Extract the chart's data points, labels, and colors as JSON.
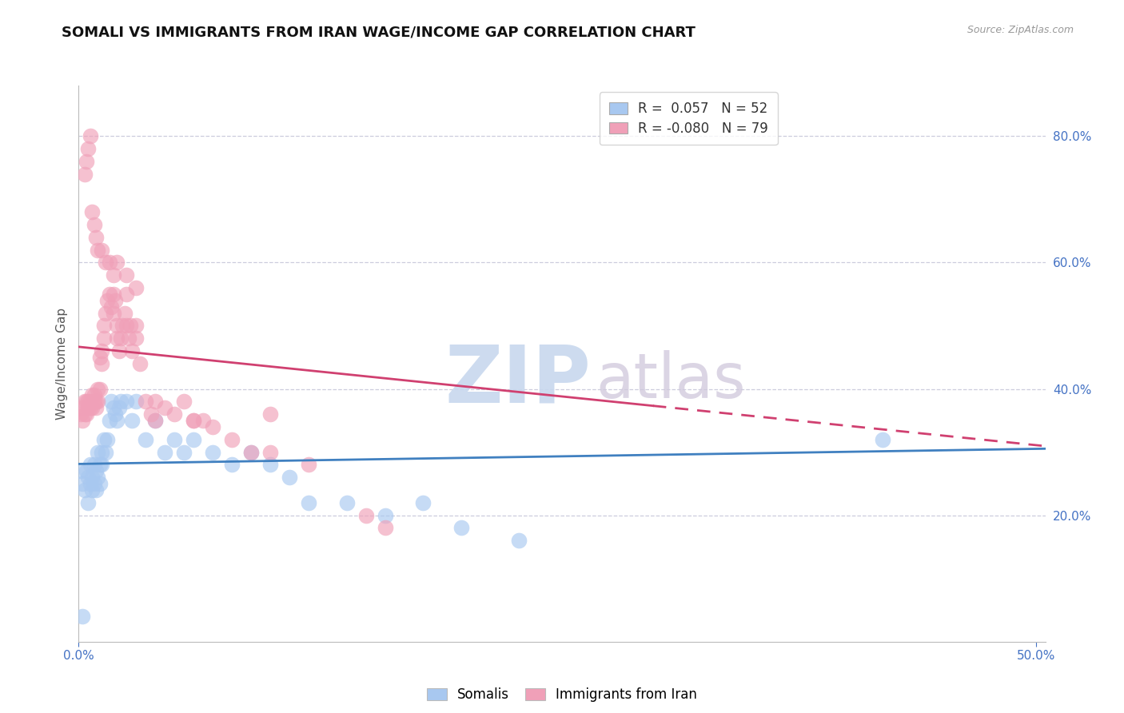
{
  "title": "SOMALI VS IMMIGRANTS FROM IRAN WAGE/INCOME GAP CORRELATION CHART",
  "source": "Source: ZipAtlas.com",
  "ylabel": "Wage/Income Gap",
  "xlim": [
    0.0,
    0.505
  ],
  "ylim": [
    0.0,
    0.88
  ],
  "xticks": [
    0.0,
    0.5
  ],
  "xticklabels": [
    "0.0%",
    "50.0%"
  ],
  "yticks_right": [
    0.2,
    0.4,
    0.6,
    0.8
  ],
  "yticklabels_right": [
    "20.0%",
    "40.0%",
    "60.0%",
    "80.0%"
  ],
  "blue_R": 0.057,
  "blue_N": 52,
  "pink_R": -0.08,
  "pink_N": 79,
  "blue_color": "#A8C8F0",
  "pink_color": "#F0A0B8",
  "blue_line_color": "#4080C0",
  "pink_line_color": "#D04070",
  "background_color": "#FFFFFF",
  "grid_color": "#CCCCDD",
  "title_fontsize": 13,
  "axis_label_fontsize": 11,
  "tick_fontsize": 11,
  "legend_fontsize": 12,
  "blue_scatter_x": [
    0.001,
    0.002,
    0.003,
    0.004,
    0.005,
    0.005,
    0.006,
    0.006,
    0.007,
    0.007,
    0.008,
    0.008,
    0.009,
    0.009,
    0.01,
    0.01,
    0.011,
    0.011,
    0.012,
    0.012,
    0.013,
    0.014,
    0.015,
    0.016,
    0.017,
    0.018,
    0.019,
    0.02,
    0.021,
    0.022,
    0.025,
    0.028,
    0.03,
    0.035,
    0.04,
    0.045,
    0.05,
    0.055,
    0.06,
    0.07,
    0.08,
    0.09,
    0.1,
    0.11,
    0.12,
    0.14,
    0.16,
    0.18,
    0.2,
    0.23,
    0.002,
    0.42
  ],
  "blue_scatter_y": [
    0.27,
    0.25,
    0.24,
    0.27,
    0.26,
    0.22,
    0.28,
    0.25,
    0.26,
    0.24,
    0.28,
    0.25,
    0.27,
    0.24,
    0.3,
    0.26,
    0.28,
    0.25,
    0.3,
    0.28,
    0.32,
    0.3,
    0.32,
    0.35,
    0.38,
    0.37,
    0.36,
    0.35,
    0.37,
    0.38,
    0.38,
    0.35,
    0.38,
    0.32,
    0.35,
    0.3,
    0.32,
    0.3,
    0.32,
    0.3,
    0.28,
    0.3,
    0.28,
    0.26,
    0.22,
    0.22,
    0.2,
    0.22,
    0.18,
    0.16,
    0.04,
    0.32
  ],
  "pink_scatter_x": [
    0.001,
    0.002,
    0.002,
    0.003,
    0.003,
    0.004,
    0.004,
    0.005,
    0.005,
    0.006,
    0.006,
    0.007,
    0.007,
    0.008,
    0.008,
    0.009,
    0.009,
    0.01,
    0.01,
    0.011,
    0.011,
    0.012,
    0.012,
    0.013,
    0.013,
    0.014,
    0.015,
    0.016,
    0.017,
    0.018,
    0.018,
    0.019,
    0.02,
    0.02,
    0.021,
    0.022,
    0.023,
    0.024,
    0.025,
    0.025,
    0.026,
    0.027,
    0.028,
    0.03,
    0.03,
    0.032,
    0.035,
    0.038,
    0.04,
    0.045,
    0.05,
    0.055,
    0.06,
    0.065,
    0.07,
    0.08,
    0.09,
    0.1,
    0.12,
    0.15,
    0.003,
    0.004,
    0.005,
    0.006,
    0.007,
    0.008,
    0.009,
    0.01,
    0.012,
    0.014,
    0.016,
    0.018,
    0.02,
    0.025,
    0.03,
    0.04,
    0.06,
    0.1,
    0.16
  ],
  "pink_scatter_y": [
    0.36,
    0.35,
    0.37,
    0.36,
    0.38,
    0.36,
    0.38,
    0.37,
    0.38,
    0.37,
    0.38,
    0.37,
    0.39,
    0.38,
    0.39,
    0.37,
    0.38,
    0.38,
    0.4,
    0.4,
    0.45,
    0.44,
    0.46,
    0.48,
    0.5,
    0.52,
    0.54,
    0.55,
    0.53,
    0.55,
    0.52,
    0.54,
    0.48,
    0.5,
    0.46,
    0.48,
    0.5,
    0.52,
    0.5,
    0.55,
    0.48,
    0.5,
    0.46,
    0.48,
    0.5,
    0.44,
    0.38,
    0.36,
    0.38,
    0.37,
    0.36,
    0.38,
    0.35,
    0.35,
    0.34,
    0.32,
    0.3,
    0.3,
    0.28,
    0.2,
    0.74,
    0.76,
    0.78,
    0.8,
    0.68,
    0.66,
    0.64,
    0.62,
    0.62,
    0.6,
    0.6,
    0.58,
    0.6,
    0.58,
    0.56,
    0.35,
    0.35,
    0.36,
    0.18
  ]
}
